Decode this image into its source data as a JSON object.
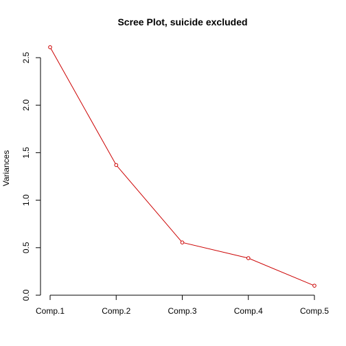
{
  "chart_data": {
    "type": "line",
    "title": "Scree Plot, suicide excluded",
    "xlabel": "",
    "ylabel": "Variances",
    "categories": [
      "Comp.1",
      "Comp.2",
      "Comp.3",
      "Comp.4",
      "Comp.5"
    ],
    "values": [
      2.61,
      1.37,
      0.555,
      0.39,
      0.1
    ],
    "ylim": [
      0,
      2.5
    ],
    "yticks": [
      "0.0",
      "0.5",
      "1.0",
      "1.5",
      "2.0",
      "2.5"
    ],
    "grid": false,
    "legend": "none",
    "line_color": "#cc0000",
    "point_style": "open-circle"
  }
}
